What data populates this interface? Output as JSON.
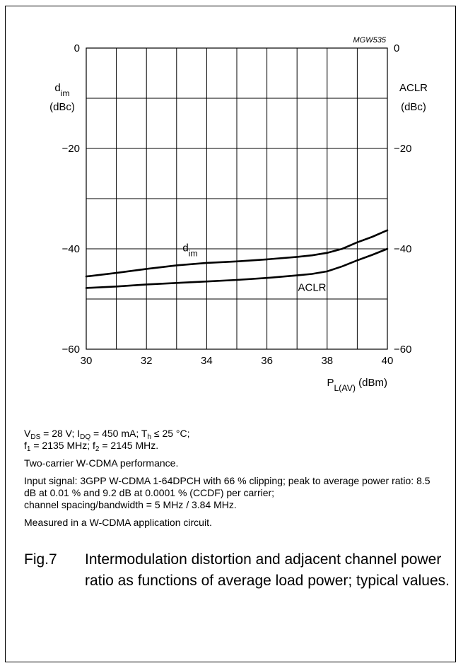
{
  "chart_data": {
    "type": "line",
    "code": "MGW535",
    "x": [
      30,
      31,
      32,
      33,
      34,
      35,
      36,
      37,
      37.5,
      38,
      38.5,
      39,
      39.5,
      40
    ],
    "series": [
      {
        "name": "dim",
        "name_main": "d",
        "name_sub": "im",
        "values": [
          -45.5,
          -44.8,
          -44.0,
          -43.3,
          -42.8,
          -42.5,
          -42.1,
          -41.6,
          -41.3,
          -40.8,
          -40.0,
          -38.7,
          -37.6,
          -36.3
        ]
      },
      {
        "name": "ACLR",
        "values": [
          -47.8,
          -47.5,
          -47.1,
          -46.8,
          -46.5,
          -46.2,
          -45.8,
          -45.3,
          -45.0,
          -44.5,
          -43.5,
          -42.3,
          -41.2,
          -40.0
        ]
      }
    ],
    "xlim": [
      30,
      40
    ],
    "ylim": [
      -60,
      0
    ],
    "x_ticks": [
      "30",
      "32",
      "34",
      "36",
      "38",
      "40"
    ],
    "y_ticks_left": [
      "0",
      "−20",
      "−40",
      "−60"
    ],
    "y_ticks_right": [
      "0",
      "−20",
      "−40",
      "−60"
    ],
    "ylabel_left": {
      "main": "d",
      "sub": "im",
      "unit": "(dBc)"
    },
    "ylabel_right": {
      "main": "ACLR",
      "unit": "(dBc)"
    },
    "xlabel": {
      "main": "P",
      "sub": "L(AV)",
      "unit": "(dBm)"
    },
    "grid": true,
    "colors": {
      "line": "#000000",
      "grid": "#000000"
    }
  },
  "notes": {
    "conditions_line1": {
      "v": "V",
      "v_sub": "DS",
      "v_text": " = 28 V; I",
      "i_sub": "DQ",
      "i_text": " = 450 mA; T",
      "t_sub": "h",
      "t_text": " ≤ 25 °C;"
    },
    "conditions_line2": {
      "f1": "f",
      "f1_sub": "1",
      "f1_text": " = 2135 MHz; f",
      "f2_sub": "2",
      "f2_text": " = 2145 MHz."
    },
    "performance": "Two-carrier W-CDMA performance.",
    "input_signal": "Input signal: 3GPP W-CDMA 1-64DPCH with 66 % clipping; peak to average power ratio: 8.5 dB at 0.01 % and 9.2 dB at 0.0001 % (CCDF) per carrier;",
    "spacing": "channel spacing/bandwidth = 5 MHz / 3.84 MHz.",
    "measured": "Measured in a W-CDMA application circuit."
  },
  "caption": {
    "number": "Fig.7",
    "text": "Intermodulation distortion and adjacent channel power ratio as functions of average load power; typical values."
  }
}
